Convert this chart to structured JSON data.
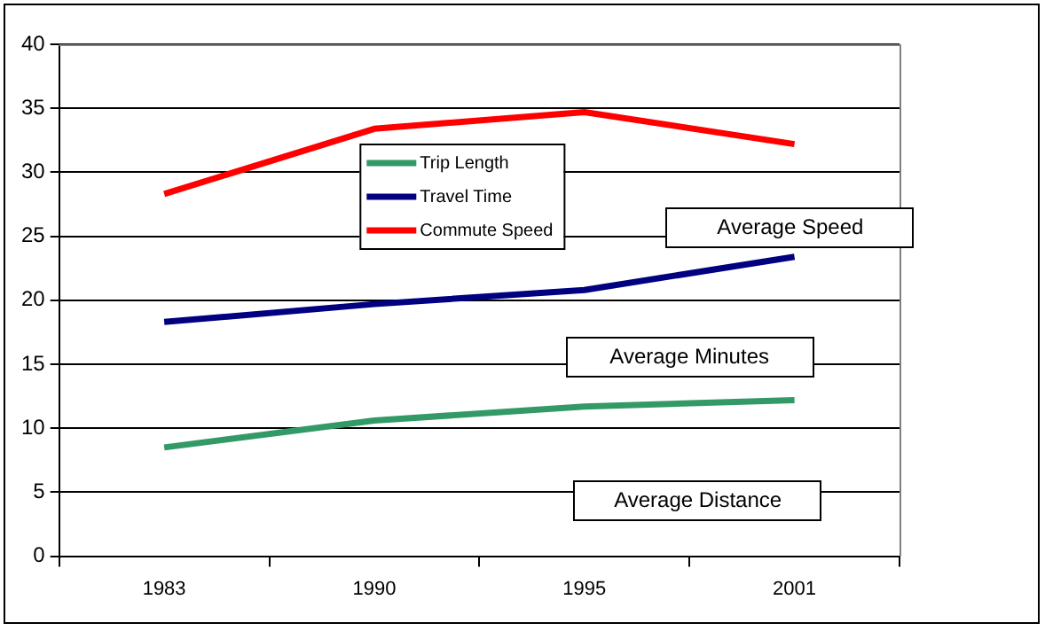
{
  "chart_data": {
    "type": "line",
    "categories": [
      "1983",
      "1990",
      "1995",
      "2001"
    ],
    "series": [
      {
        "name": "Trip Length",
        "color": "#339966",
        "values": [
          8.5,
          10.6,
          11.7,
          12.2
        ]
      },
      {
        "name": "Travel Time",
        "color": "#000080",
        "values": [
          18.3,
          19.7,
          20.8,
          23.4
        ]
      },
      {
        "name": "Commute Speed",
        "color": "#ff0000",
        "values": [
          28.3,
          33.4,
          34.7,
          32.2
        ]
      }
    ],
    "ylim": [
      0,
      40
    ],
    "yticks": [
      0,
      5,
      10,
      15,
      20,
      25,
      30,
      35,
      40
    ],
    "grid": "y",
    "legend": "top",
    "marker": "none",
    "line_style": "solid",
    "annotations": [
      "Average Speed",
      "Average Minutes",
      "Average Distance"
    ]
  }
}
